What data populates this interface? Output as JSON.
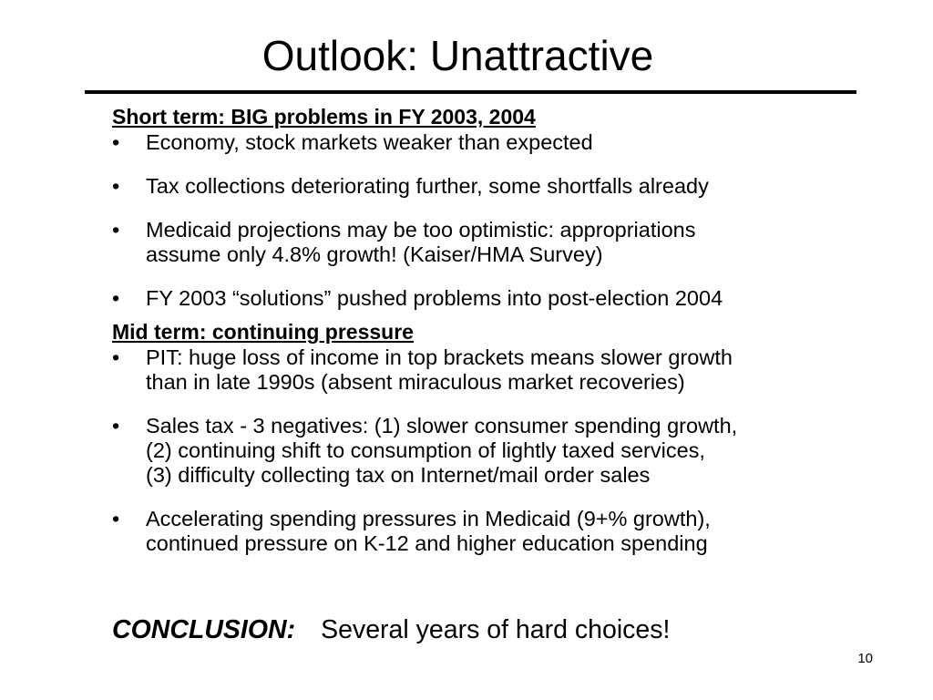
{
  "title": "Outlook: Unattractive",
  "short_term": {
    "heading": "Short term: BIG problems in FY 2003, 2004",
    "bullets": [
      "Economy, stock markets weaker than expected",
      "Tax collections deteriorating further, some shortfalls already",
      "Medicaid projections may be too optimistic: appropriations\nassume only 4.8% growth! (Kaiser/HMA Survey)",
      "FY 2003 “solutions” pushed problems into post-election 2004"
    ]
  },
  "mid_term": {
    "heading": "Mid term: continuing pressure",
    "bullets": [
      "PIT: huge loss of income in top brackets means slower growth\nthan in late 1990s (absent miraculous market recoveries)",
      "Sales tax - 3 negatives: (1) slower consumer spending growth,\n(2) continuing shift to consumption of lightly taxed services,\n(3) difficulty collecting tax on Internet/mail order sales",
      "Accelerating spending pressures in Medicaid (9+% growth),\ncontinued pressure on K-12 and higher education spending"
    ]
  },
  "conclusion": {
    "label": "CONCLUSION:",
    "text": "Several years of hard choices!"
  },
  "bullet_marker": "•",
  "page_number": "10"
}
